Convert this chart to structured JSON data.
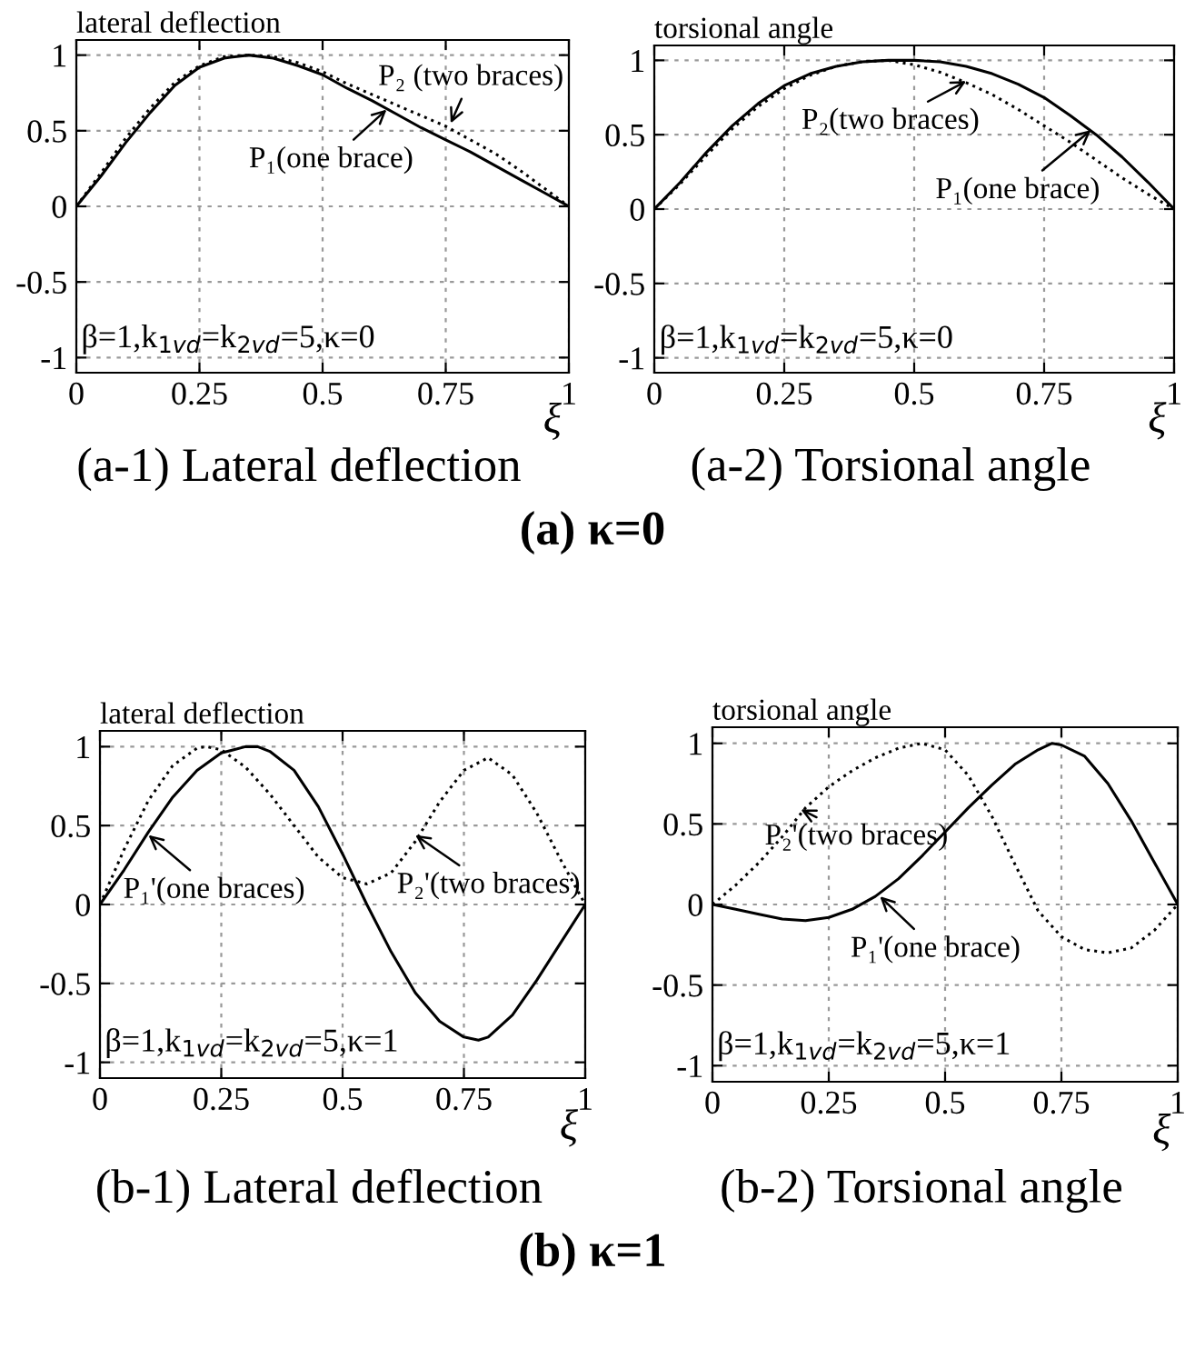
{
  "chart_data": [
    {
      "type": "line",
      "title": "lateral deflection",
      "xlabel": "ξ",
      "xlim": [
        0,
        1
      ],
      "ylim": [
        -1.1,
        1.1
      ],
      "xticks": [
        0,
        0.25,
        0.5,
        0.75,
        1
      ],
      "yticks": [
        -1,
        -0.5,
        0,
        0.5,
        1
      ],
      "grid": true,
      "x": [
        0,
        0.05,
        0.1,
        0.15,
        0.2,
        0.25,
        0.3,
        0.35,
        0.4,
        0.45,
        0.5,
        0.55,
        0.6,
        0.65,
        0.7,
        0.75,
        0.8,
        0.85,
        0.9,
        0.95,
        1
      ],
      "series": [
        {
          "color": "#000000",
          "line_style": "solid",
          "values": [
            0,
            0.2,
            0.42,
            0.62,
            0.8,
            0.92,
            0.98,
            1.0,
            0.98,
            0.93,
            0.87,
            0.78,
            0.7,
            0.61,
            0.52,
            0.44,
            0.36,
            0.27,
            0.18,
            0.09,
            0
          ]
        },
        {
          "color": "#000000",
          "line_style": "dotted",
          "values": [
            0,
            0.22,
            0.45,
            0.65,
            0.82,
            0.93,
            0.99,
            1.0,
            0.99,
            0.95,
            0.89,
            0.81,
            0.74,
            0.67,
            0.6,
            0.53,
            0.44,
            0.35,
            0.24,
            0.12,
            0
          ]
        }
      ],
      "annotations": [
        {
          "text": "P₂ (two braces)",
          "x": 0.76,
          "y": 0.55
        },
        {
          "text": "P₁(one brace)",
          "x": 0.63,
          "y": 0.64
        },
        "β=1,k$_{1vd}$=k$_{2vd}$=5,κ=0",
        "(a-1) Lateral deflection",
        "(a) κ=0"
      ]
    },
    {
      "type": "line",
      "title": "torsional angle",
      "xlabel": "ξ",
      "xlim": [
        0,
        1
      ],
      "ylim": [
        -1.1,
        1.1
      ],
      "xticks": [
        0,
        0.25,
        0.5,
        0.75,
        1
      ],
      "yticks": [
        -1,
        -0.5,
        0,
        0.5,
        1
      ],
      "grid": true,
      "x": [
        0,
        0.05,
        0.1,
        0.15,
        0.2,
        0.25,
        0.3,
        0.35,
        0.4,
        0.45,
        0.5,
        0.55,
        0.6,
        0.65,
        0.7,
        0.75,
        0.8,
        0.85,
        0.9,
        0.95,
        1
      ],
      "series": [
        {
          "color": "#000000",
          "line_style": "solid",
          "values": [
            0,
            0.18,
            0.38,
            0.56,
            0.71,
            0.83,
            0.91,
            0.96,
            0.99,
            1.0,
            1.0,
            0.99,
            0.96,
            0.91,
            0.84,
            0.75,
            0.63,
            0.5,
            0.35,
            0.18,
            0
          ]
        },
        {
          "color": "#000000",
          "line_style": "dotted",
          "values": [
            0,
            0.17,
            0.36,
            0.54,
            0.69,
            0.81,
            0.9,
            0.96,
            0.99,
            1.0,
            0.97,
            0.92,
            0.85,
            0.77,
            0.67,
            0.56,
            0.45,
            0.33,
            0.21,
            0.1,
            0
          ]
        }
      ],
      "annotations": [
        {
          "text": "P₂(two braces)",
          "x": 0.6,
          "y": 0.86
        },
        {
          "text": "P₁(one brace)",
          "x": 0.84,
          "y": 0.53
        },
        "β=1,k$_{1vd}$=k$_{2vd}$=5,κ=0",
        "(a-2) Torsional angle"
      ]
    },
    {
      "type": "line",
      "title": "lateral deflection",
      "xlabel": "ξ",
      "xlim": [
        0,
        1
      ],
      "ylim": [
        -1.1,
        1.1
      ],
      "xticks": [
        0,
        0.25,
        0.5,
        0.75,
        1
      ],
      "yticks": [
        -1,
        -0.5,
        0,
        0.5,
        1
      ],
      "grid": true,
      "series": [
        {
          "color": "#000000",
          "line_style": "solid",
          "x": [
            0,
            0.05,
            0.1,
            0.15,
            0.2,
            0.25,
            0.3,
            0.325,
            0.35,
            0.4,
            0.45,
            0.5,
            0.55,
            0.6,
            0.65,
            0.7,
            0.75,
            0.78,
            0.8,
            0.85,
            0.9,
            0.95,
            1
          ],
          "values": [
            0,
            0.22,
            0.46,
            0.68,
            0.85,
            0.96,
            1.0,
            1.0,
            0.97,
            0.85,
            0.62,
            0.32,
            0.0,
            -0.3,
            -0.56,
            -0.74,
            -0.84,
            -0.86,
            -0.84,
            -0.7,
            -0.48,
            -0.24,
            0
          ]
        },
        {
          "color": "#000000",
          "line_style": "dotted",
          "x": [
            0,
            0.05,
            0.1,
            0.15,
            0.2,
            0.22,
            0.25,
            0.3,
            0.35,
            0.4,
            0.45,
            0.5,
            0.55,
            0.6,
            0.65,
            0.7,
            0.75,
            0.8,
            0.85,
            0.9,
            0.95,
            1
          ],
          "values": [
            0,
            0.35,
            0.66,
            0.88,
            0.99,
            1.0,
            0.98,
            0.87,
            0.7,
            0.5,
            0.3,
            0.17,
            0.13,
            0.2,
            0.4,
            0.65,
            0.85,
            0.93,
            0.82,
            0.58,
            0.28,
            0
          ]
        }
      ],
      "annotations": [
        {
          "text": "P₁'(one braces)",
          "x": 0.1,
          "y": 0.44
        },
        {
          "text": "P₂'(two braces)",
          "x": 0.65,
          "y": 0.44
        },
        "β=1,k$_{1vd}$=k$_{2vd}$=5,κ=1",
        "(b-1) Lateral deflection",
        "(b) κ=1"
      ]
    },
    {
      "type": "line",
      "title": "torsional angle",
      "xlabel": "ξ",
      "xlim": [
        0,
        1
      ],
      "ylim": [
        -1.1,
        1.1
      ],
      "xticks": [
        0,
        0.25,
        0.5,
        0.75,
        1
      ],
      "yticks": [
        -1,
        -0.5,
        0,
        0.5,
        1
      ],
      "grid": true,
      "series": [
        {
          "color": "#000000",
          "line_style": "solid",
          "x": [
            0,
            0.05,
            0.1,
            0.15,
            0.2,
            0.25,
            0.3,
            0.35,
            0.4,
            0.45,
            0.5,
            0.55,
            0.6,
            0.65,
            0.7,
            0.73,
            0.75,
            0.8,
            0.85,
            0.9,
            0.95,
            1
          ],
          "values": [
            0,
            -0.03,
            -0.06,
            -0.09,
            -0.1,
            -0.08,
            -0.03,
            0.05,
            0.16,
            0.3,
            0.45,
            0.6,
            0.74,
            0.87,
            0.96,
            1.0,
            0.99,
            0.92,
            0.75,
            0.52,
            0.26,
            0
          ]
        },
        {
          "color": "#000000",
          "line_style": "dotted",
          "x": [
            0,
            0.05,
            0.1,
            0.15,
            0.2,
            0.25,
            0.3,
            0.35,
            0.4,
            0.45,
            0.5,
            0.55,
            0.6,
            0.65,
            0.7,
            0.75,
            0.8,
            0.85,
            0.9,
            0.95,
            1
          ],
          "values": [
            0,
            0.12,
            0.26,
            0.42,
            0.6,
            0.73,
            0.83,
            0.91,
            0.97,
            1.0,
            0.96,
            0.8,
            0.55,
            0.25,
            -0.04,
            -0.2,
            -0.28,
            -0.3,
            -0.27,
            -0.16,
            0
          ]
        }
      ],
      "annotations": [
        {
          "text": "P₂'(two braces)",
          "x": 0.19,
          "y": 0.59
        },
        {
          "text": "P₁'(one brace)",
          "x": 0.36,
          "y": 0.05
        },
        "β=1,k$_{1vd}$=k$_{2vd}$=5,κ=1",
        "(b-2) Torsional angle"
      ]
    }
  ]
}
